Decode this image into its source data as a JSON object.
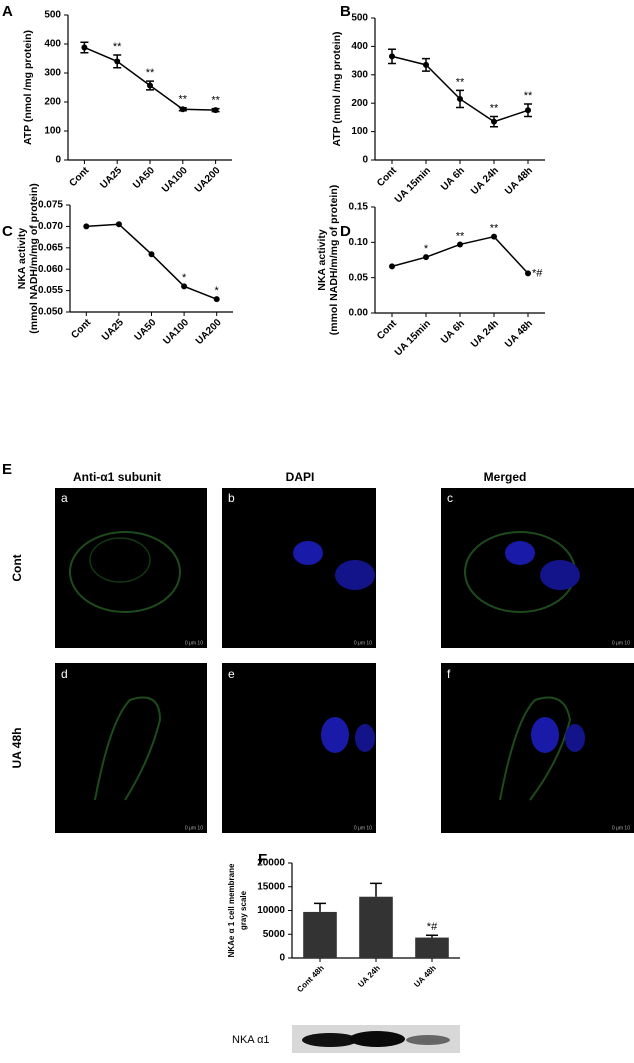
{
  "chart_data": [
    {
      "type": "line",
      "panel": "A",
      "ylabel": [
        "ATP (nmol /mg protein)"
      ],
      "categories": [
        "Cont",
        "UA25",
        "UA50",
        "UA100",
        "UA200"
      ],
      "values": [
        388,
        340,
        257,
        175,
        172
      ],
      "errors": [
        18,
        22,
        15,
        5,
        5
      ],
      "annotations": [
        null,
        "**",
        "**",
        "**",
        "**"
      ],
      "ylim": [
        0,
        500
      ],
      "yticks": [
        0,
        100,
        200,
        300,
        400,
        500
      ],
      "color": "#000000"
    },
    {
      "type": "line",
      "panel": "B",
      "ylabel": [
        "ATP (nmol /mg protein)"
      ],
      "categories": [
        "Cont",
        "UA 15min",
        "UA  6h",
        "UA  24h",
        "UA  48h"
      ],
      "values": [
        365,
        335,
        215,
        135,
        175
      ],
      "errors": [
        25,
        22,
        30,
        18,
        22
      ],
      "annotations": [
        null,
        null,
        "**",
        "**",
        "**"
      ],
      "ylim": [
        0,
        500
      ],
      "yticks": [
        0,
        100,
        200,
        300,
        400,
        500
      ],
      "color": "#000000"
    },
    {
      "type": "line",
      "panel": "C",
      "ylabel": [
        "NKA activity",
        "(mmol NADH/m/mg of protein)"
      ],
      "categories": [
        "Cont",
        "UA25",
        "UA50",
        "UA100",
        "UA200"
      ],
      "values": [
        0.07,
        0.0705,
        0.0635,
        0.056,
        0.053
      ],
      "annotations": [
        null,
        null,
        null,
        "*",
        "*"
      ],
      "ylim": [
        0.05,
        0.075
      ],
      "yticks": [
        {
          "value": 0.05,
          "label": "0.050"
        },
        {
          "value": 0.055,
          "label": "0.055"
        },
        {
          "value": 0.06,
          "label": "0.060"
        },
        {
          "value": 0.065,
          "label": "0.065"
        },
        {
          "value": 0.07,
          "label": "0.070"
        },
        {
          "value": 0.075,
          "label": "0.075"
        }
      ],
      "color": "#000000"
    },
    {
      "type": "line",
      "panel": "D",
      "ylabel": [
        "NKA activity",
        "(mmol NADH/m/mg of protein)"
      ],
      "categories": [
        "Cont",
        "UA 15min",
        "UA  6h",
        "UA  24h",
        "UA  48h"
      ],
      "values": [
        0.066,
        0.079,
        0.097,
        0.108,
        0.056
      ],
      "annotations": [
        null,
        "*",
        "**",
        "**",
        "*#"
      ],
      "ylim": [
        0,
        0.15
      ],
      "yticks": [
        {
          "value": 0,
          "label": "0.00"
        },
        {
          "value": 0.05,
          "label": "0.05"
        },
        {
          "value": 0.1,
          "label": "0.10"
        },
        {
          "value": 0.15,
          "label": "0.15"
        }
      ],
      "color": "#000000"
    },
    {
      "type": "bar",
      "panel": "F",
      "ylabel": [
        "NKAe α 1 cell membrane",
        "gray scale"
      ],
      "categories": [
        "Cont 48h",
        "UA 24h",
        "UA 48h"
      ],
      "values": [
        9700,
        12900,
        4300
      ],
      "errors": [
        1800,
        2800,
        500
      ],
      "annotations": [
        null,
        null,
        "*#"
      ],
      "ylim": [
        0,
        20000
      ],
      "yticks": [
        0,
        5000,
        10000,
        15000,
        20000
      ],
      "color": "#333333"
    }
  ],
  "panel_e": {
    "label": "E",
    "columns": [
      "Anti-α1 subunit",
      "DAPI",
      "Merged"
    ],
    "rows": [
      "Cont",
      "UA 48h"
    ],
    "images": [
      "a",
      "b",
      "c",
      "d",
      "e",
      "f"
    ],
    "scale_bar": "0  μm  10"
  },
  "blot": {
    "label": "NKA  α1"
  }
}
